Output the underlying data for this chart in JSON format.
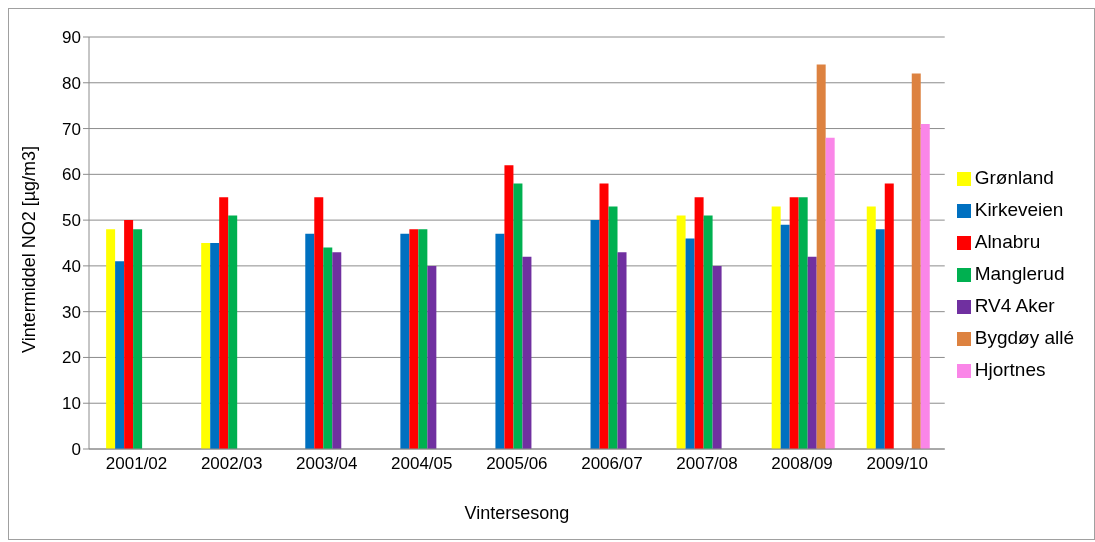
{
  "chart_data": {
    "type": "bar",
    "xlabel": "Vintersesong",
    "ylabel": "Vintermiddel NO2 [µg/m3]",
    "categories": [
      "2001/02",
      "2002/03",
      "2003/04",
      "2004/05",
      "2005/06",
      "2006/07",
      "2007/08",
      "2008/09",
      "2009/10"
    ],
    "series": [
      {
        "name": "Grønland",
        "color": "#ffff00",
        "values": [
          48,
          45,
          null,
          null,
          null,
          null,
          51,
          53,
          53
        ]
      },
      {
        "name": "Kirkeveien",
        "color": "#0070c0",
        "values": [
          41,
          45,
          47,
          47,
          47,
          50,
          46,
          49,
          48
        ]
      },
      {
        "name": "Alnabru",
        "color": "#ff0000",
        "values": [
          50,
          55,
          55,
          48,
          62,
          58,
          55,
          55,
          58
        ]
      },
      {
        "name": "Manglerud",
        "color": "#00b050",
        "values": [
          48,
          51,
          44,
          48,
          58,
          53,
          51,
          55,
          null
        ]
      },
      {
        "name": "RV4 Aker",
        "color": "#7030a0",
        "values": [
          null,
          null,
          43,
          40,
          42,
          43,
          40,
          42,
          null
        ]
      },
      {
        "name": "Bygdøy allé",
        "color": "#dd8240",
        "values": [
          null,
          null,
          null,
          null,
          null,
          null,
          null,
          84,
          82
        ]
      },
      {
        "name": "Hjortnes",
        "color": "#fa86e8",
        "values": [
          null,
          null,
          null,
          null,
          null,
          null,
          null,
          68,
          71
        ]
      }
    ],
    "ylim": [
      0,
      90
    ],
    "yticks": [
      0,
      10,
      20,
      30,
      40,
      50,
      60,
      70,
      80,
      90
    ],
    "grid": "y",
    "legend": "right"
  }
}
